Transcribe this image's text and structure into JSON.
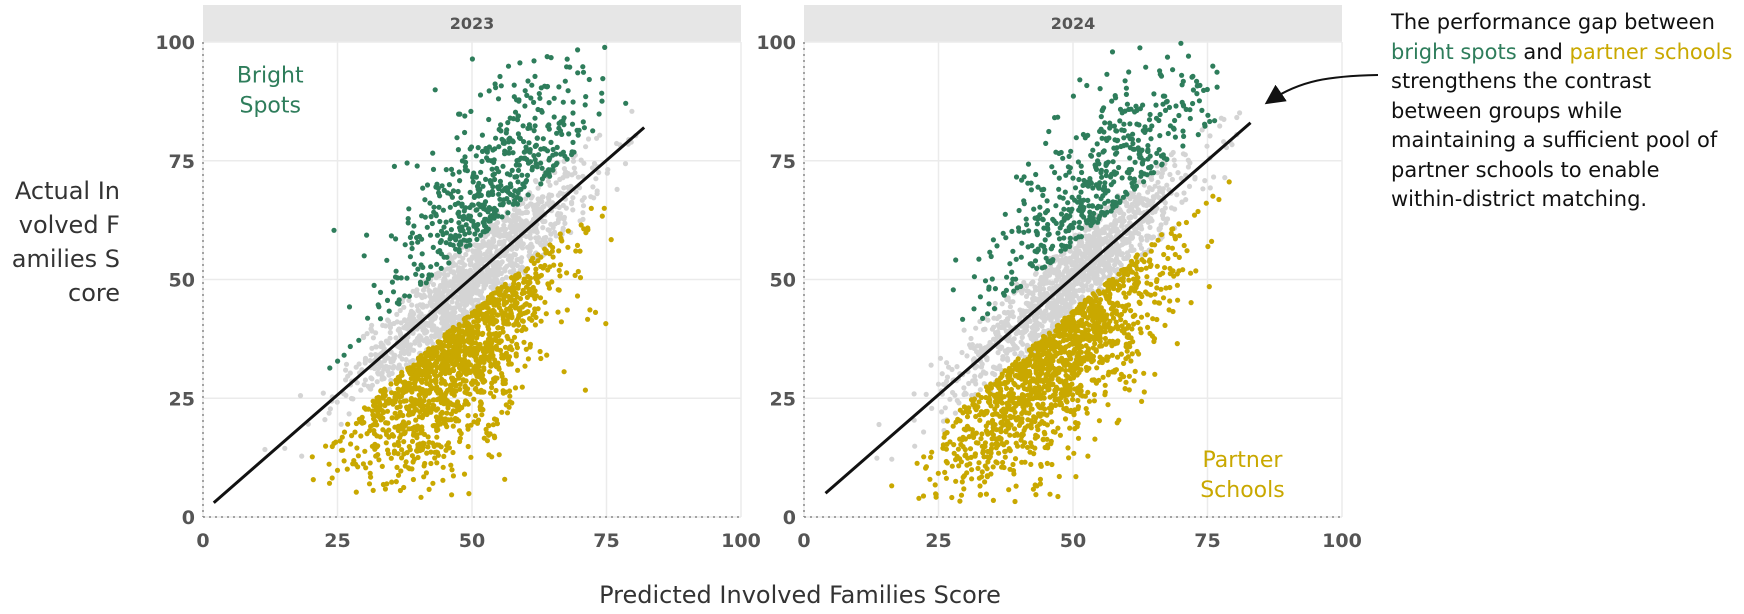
{
  "colors": {
    "bright_spots": "#2e7d5b",
    "partner_schools": "#c9a800",
    "other_schools": "#d4d4d4",
    "diagonal": "#111111",
    "strip": "#e6e6e6",
    "gridline": "#ebebeb"
  },
  "y_axis_title": "Actual Involved Families Score",
  "x_axis_title": "Predicted Involved Families Score",
  "annotation": {
    "part1": "The performance gap between ",
    "green": "bright spots",
    "part2": " and ",
    "gold": "partner schools",
    "part3": " strengthens the contrast between groups while maintaining a sufficient pool of partner schools to enable within-district matching."
  },
  "chart_data": [
    {
      "type": "scatter",
      "panel": "2023",
      "xlim": [
        0,
        100
      ],
      "ylim": [
        0,
        100
      ],
      "x_ticks": [
        0,
        25,
        50,
        75,
        100
      ],
      "y_ticks": [
        0,
        25,
        50,
        75,
        100
      ],
      "grid": true,
      "series": [
        {
          "name": "Bright Spots",
          "label_position": "top-left",
          "x_range": [
            1,
            80
          ],
          "y_range": [
            10,
            100
          ],
          "approx_points": 520
        },
        {
          "name": "Partner Schools",
          "x_range": [
            18,
            80
          ],
          "y_range": [
            4,
            76
          ],
          "approx_points": 1400
        }
      ],
      "other_points": {
        "x_range": [
          5,
          82
        ],
        "y_range": [
          5,
          95
        ],
        "approx_points": 1200
      },
      "diagonal": {
        "x": [
          2,
          82
        ],
        "y": [
          3,
          82
        ]
      }
    },
    {
      "type": "scatter",
      "panel": "2024",
      "xlim": [
        0,
        100
      ],
      "ylim": [
        0,
        100
      ],
      "x_ticks": [
        0,
        25,
        50,
        75,
        100
      ],
      "y_ticks": [
        0,
        25,
        50,
        75,
        100
      ],
      "grid": true,
      "series": [
        {
          "name": "Bright Spots",
          "x_range": [
            3,
            80
          ],
          "y_range": [
            20,
            100
          ],
          "approx_points": 500
        },
        {
          "name": "Partner Schools",
          "label_position": "bottom-right",
          "x_range": [
            15,
            80
          ],
          "y_range": [
            3,
            76
          ],
          "approx_points": 1400
        }
      ],
      "other_points": {
        "x_range": [
          5,
          82
        ],
        "y_range": [
          5,
          95
        ],
        "approx_points": 1200
      },
      "diagonal": {
        "x": [
          4,
          83
        ],
        "y": [
          5,
          83
        ]
      }
    }
  ]
}
